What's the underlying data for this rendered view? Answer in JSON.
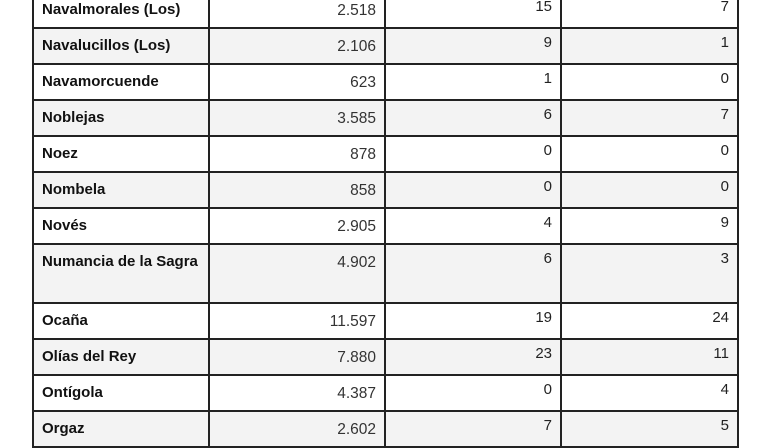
{
  "table": {
    "rows": [
      {
        "name": "Navalmorales (Los)",
        "col2": "2.518",
        "col3": "15",
        "col4": "7"
      },
      {
        "name": "Navalucillos (Los)",
        "col2": "2.106",
        "col3": "9",
        "col4": "1"
      },
      {
        "name": "Navamorcuende",
        "col2": "623",
        "col3": "1",
        "col4": "0"
      },
      {
        "name": "Noblejas",
        "col2": "3.585",
        "col3": "6",
        "col4": "7"
      },
      {
        "name": "Noez",
        "col2": "878",
        "col3": "0",
        "col4": "0"
      },
      {
        "name": "Nombela",
        "col2": "858",
        "col3": "0",
        "col4": "0"
      },
      {
        "name": "Novés",
        "col2": "2.905",
        "col3": "4",
        "col4": "9"
      },
      {
        "name": "Numancia de la Sagra",
        "col2": "4.902",
        "col3": "6",
        "col4": "3"
      },
      {
        "name": "Ocaña",
        "col2": "11.597",
        "col3": "19",
        "col4": "24"
      },
      {
        "name": "Olías del Rey",
        "col2": "7.880",
        "col3": "23",
        "col4": "11"
      },
      {
        "name": "Ontígola",
        "col2": "4.387",
        "col3": "0",
        "col4": "4"
      },
      {
        "name": "Orgaz",
        "col2": "2.602",
        "col3": "7",
        "col4": "5"
      }
    ]
  },
  "colors": {
    "border": "#222222",
    "alt_row": "#f3f3f3"
  }
}
